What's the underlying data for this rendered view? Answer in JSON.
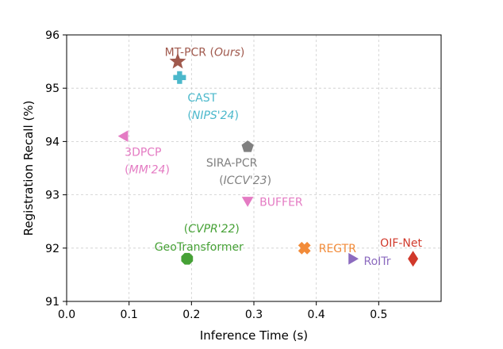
{
  "chart_data": {
    "type": "scatter",
    "title": "",
    "xlabel": "Inference Time (s)",
    "ylabel": "Registration Recall (%)",
    "xlim": [
      0.0,
      0.6
    ],
    "ylim": [
      91,
      96
    ],
    "xticks": [
      "0.0",
      "0.1",
      "0.2",
      "0.3",
      "0.4",
      "0.5"
    ],
    "yticks": [
      "91",
      "92",
      "93",
      "94",
      "95",
      "96"
    ],
    "grid": true,
    "points": [
      {
        "name": "MT-PCR",
        "venue": "Ours",
        "label": "MT-PCR (Ours)",
        "x": 0.178,
        "y": 95.5,
        "marker": "star",
        "color": "#A0594D"
      },
      {
        "name": "CAST",
        "venue": "NIPS'24",
        "x": 0.181,
        "y": 95.2,
        "marker": "plus",
        "color": "#4BB8CB"
      },
      {
        "name": "3DPCP",
        "venue": "MM'24",
        "x": 0.093,
        "y": 94.1,
        "marker": "triangle-left",
        "color": "#E47BC3"
      },
      {
        "name": "SIRA-PCR",
        "venue": "ICCV'23",
        "x": 0.29,
        "y": 93.9,
        "marker": "pentagon",
        "color": "#808080"
      },
      {
        "name": "BUFFER",
        "x": 0.29,
        "y": 92.9,
        "marker": "triangle-down",
        "color": "#E47BC3"
      },
      {
        "name": "GeoTransformer",
        "venue": "CVPR'22",
        "x": 0.193,
        "y": 91.8,
        "marker": "octagon",
        "color": "#46A136"
      },
      {
        "name": "REGTR",
        "x": 0.381,
        "y": 92.0,
        "marker": "x",
        "color": "#F28B39"
      },
      {
        "name": "RoITr",
        "x": 0.457,
        "y": 91.8,
        "marker": "triangle-right",
        "color": "#8C6BBF"
      },
      {
        "name": "OIF-Net",
        "x": 0.555,
        "y": 91.8,
        "marker": "diamond",
        "color": "#D1392B"
      }
    ]
  }
}
